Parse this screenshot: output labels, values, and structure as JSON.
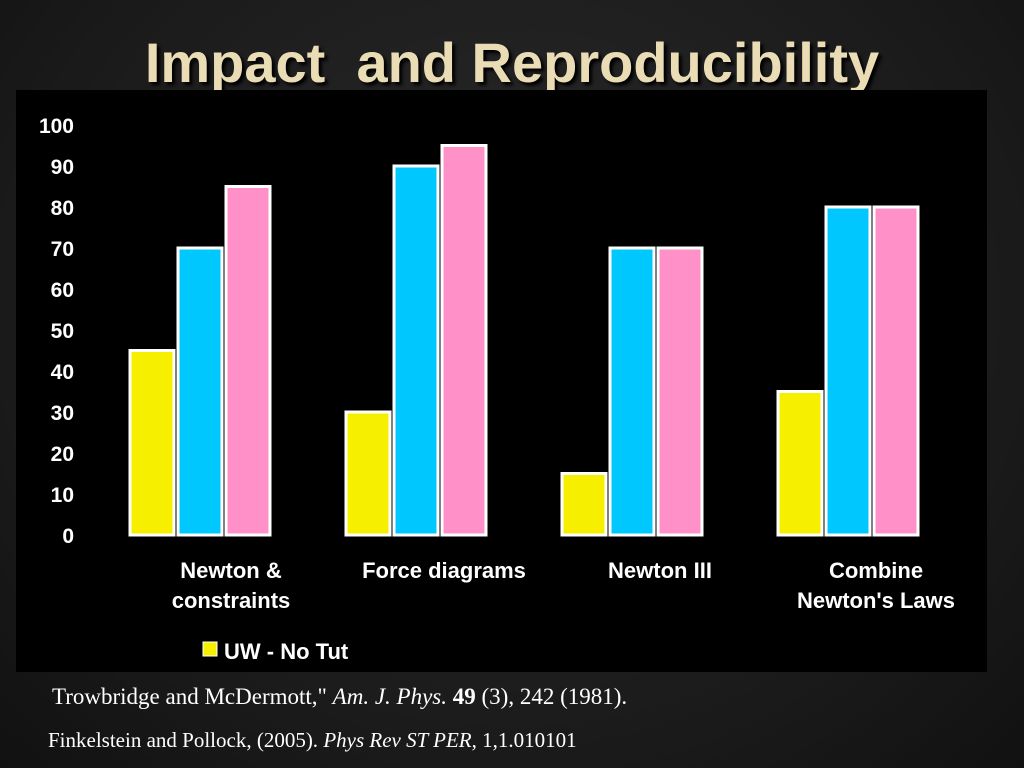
{
  "title": "Impact  and Reproducibility",
  "chart_data": {
    "type": "bar",
    "categories": [
      [
        "Newton &",
        "constraints"
      ],
      [
        "Force diagrams"
      ],
      [
        "Newton III"
      ],
      [
        "Combine",
        "Newton's Laws"
      ]
    ],
    "series": [
      {
        "name": "UW - No Tut",
        "color": "#f7ef00",
        "values": [
          45,
          30,
          15,
          35
        ]
      },
      {
        "color": "#00c8ff",
        "values": [
          70,
          90,
          70,
          80
        ]
      },
      {
        "color": "#ff90c8",
        "values": [
          85,
          95,
          70,
          80
        ]
      }
    ],
    "ylim": [
      0,
      100
    ],
    "yticks": [
      0,
      10,
      20,
      30,
      40,
      50,
      60,
      70,
      80,
      90,
      100
    ],
    "legend_position": "bottom-center",
    "grid": false
  },
  "citations": [
    {
      "author": "Trowbridge and McDermott,\" ",
      "journal": "Am. J. Phys.",
      "volume": " 49",
      "rest": " (3), 242 (1981)."
    },
    {
      "author": "Finkelstein and Pollock, (2005). ",
      "journal": "Phys Rev ST PER",
      "rest": ", 1,1.010101"
    }
  ]
}
